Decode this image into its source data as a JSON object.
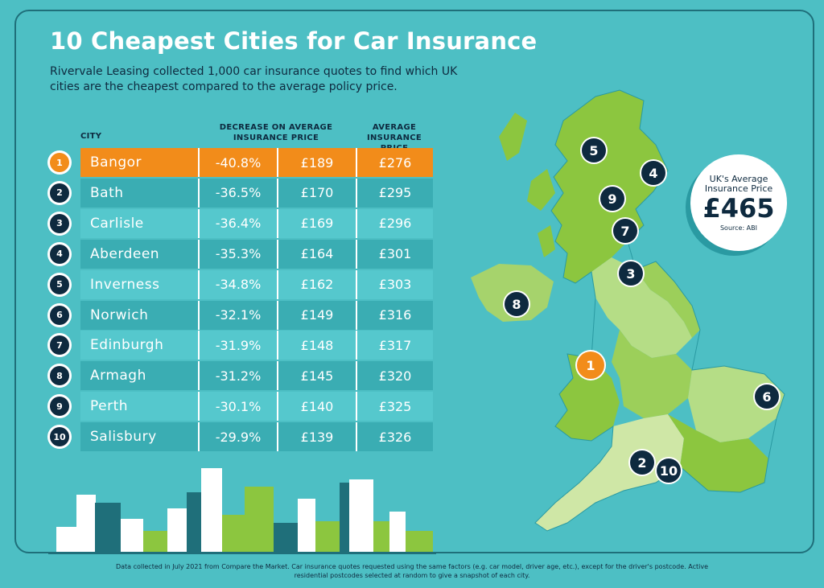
{
  "title": "10 Cheapest Cities for Car Insurance",
  "subtitle": "Rivervale Leasing collected 1,000 car insurance quotes to find which UK cities are the cheapest compared to the average policy price.",
  "table": {
    "headers": {
      "city": "CITY",
      "decrease": "DECREASE ON AVERAGE INSURANCE PRICE",
      "average": "AVERAGE INSURANCE PRICE"
    },
    "rows": [
      {
        "rank": "1",
        "city": "Bangor",
        "decrease": "-40.8%",
        "price": "£189",
        "average": "£276"
      },
      {
        "rank": "2",
        "city": "Bath",
        "decrease": "-36.5%",
        "price": "£170",
        "average": "£295"
      },
      {
        "rank": "3",
        "city": "Carlisle",
        "decrease": "-36.4%",
        "price": "£169",
        "average": "£296"
      },
      {
        "rank": "4",
        "city": "Aberdeen",
        "decrease": "-35.3%",
        "price": "£164",
        "average": "£301"
      },
      {
        "rank": "5",
        "city": "Inverness",
        "decrease": "-34.8%",
        "price": "£162",
        "average": "£303"
      },
      {
        "rank": "6",
        "city": "Norwich",
        "decrease": "-32.1%",
        "price": "£149",
        "average": "£316"
      },
      {
        "rank": "7",
        "city": "Edinburgh",
        "decrease": "-31.9%",
        "price": "£148",
        "average": "£317"
      },
      {
        "rank": "8",
        "city": "Armagh",
        "decrease": "-31.2%",
        "price": "£145",
        "average": "£320"
      },
      {
        "rank": "9",
        "city": "Perth",
        "decrease": "-30.1%",
        "price": "£140",
        "average": "£325"
      },
      {
        "rank": "10",
        "city": "Salisbury",
        "decrease": "-29.9%",
        "price": "£139",
        "average": "£326"
      }
    ]
  },
  "uk_average": {
    "label": "UK's Average Insurance Price",
    "value": "£465",
    "source": "Source: ABI"
  },
  "map_markers": [
    "1",
    "2",
    "3",
    "4",
    "5",
    "6",
    "7",
    "8",
    "9",
    "10"
  ],
  "footer": "Data collected in July 2021 from Compare the Market. Car insurance quotes requested using the same factors (e.g. car model, driver age, etc.), except for the driver's postcode. Active residential postcodes selected at random to give a snapshot of each city.",
  "colors": {
    "background": "#4dbfc4",
    "highlight": "#f28c1a",
    "navy": "#0e2a3f",
    "map_green": "#8cc63f"
  },
  "icons": [
    "uk-map-illustration",
    "city-skyline-illustration"
  ]
}
